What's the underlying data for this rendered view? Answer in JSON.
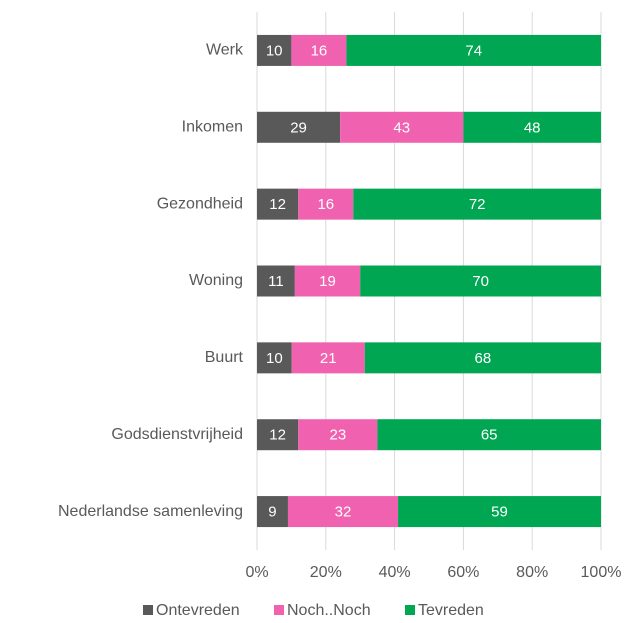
{
  "chart_data": {
    "type": "stacked_bar_100",
    "orientation": "horizontal",
    "categories": [
      "Werk",
      "Inkomen",
      "Gezondheid",
      "Woning",
      "Buurt",
      "Godsdienstvrijheid",
      "Nederlandse samenleving"
    ],
    "series": [
      {
        "name": "Ontevreden",
        "color": "#595959",
        "values": [
          10,
          29,
          12,
          11,
          10,
          12,
          9
        ]
      },
      {
        "name": "Noch..Noch",
        "color": "#f062b0",
        "values": [
          16,
          43,
          16,
          19,
          21,
          23,
          32
        ]
      },
      {
        "name": "Tevreden",
        "color": "#00a651",
        "values": [
          74,
          48,
          72,
          70,
          68,
          65,
          59
        ]
      }
    ],
    "xlim": [
      0,
      100
    ],
    "xticks": [
      {
        "value": 0,
        "label": "0%"
      },
      {
        "value": 20,
        "label": "20%"
      },
      {
        "value": 40,
        "label": "40%"
      },
      {
        "value": 60,
        "label": "60%"
      },
      {
        "value": 80,
        "label": "80%"
      },
      {
        "value": 100,
        "label": "100%"
      }
    ],
    "grid": true,
    "legend": "bottom"
  }
}
